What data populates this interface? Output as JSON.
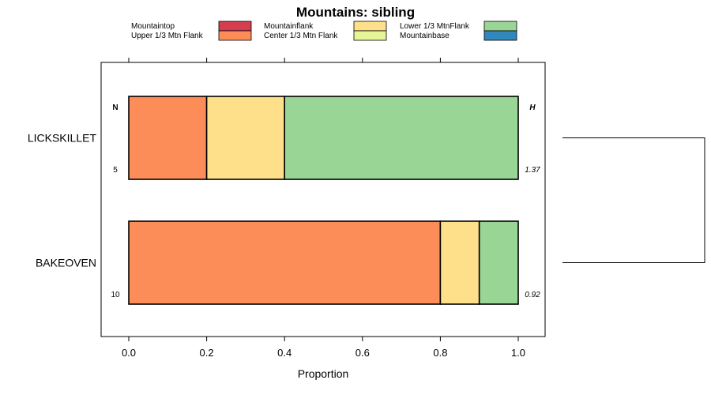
{
  "chart_data": {
    "type": "bar",
    "orientation": "horizontal",
    "stacked": true,
    "title": "Mountains: sibling",
    "xlabel": "Proportion",
    "ylabel": "",
    "xlim": [
      -0.07,
      1.07
    ],
    "xticks": [
      0.0,
      0.2,
      0.4,
      0.6,
      0.8,
      1.0
    ],
    "xtick_labels": [
      "0.0",
      "0.2",
      "0.4",
      "0.6",
      "0.8",
      "1.0"
    ],
    "legend_position": "top",
    "segments": [
      {
        "name": "Mountaintop",
        "color": "#d53e4f"
      },
      {
        "name": "Upper 1/3 Mtn Flank",
        "color": "#fc8d59"
      },
      {
        "name": "Mountainflank",
        "color": "#fee08b"
      },
      {
        "name": "Center 1/3 Mtn Flank",
        "color": "#e6f598"
      },
      {
        "name": "Lower 1/3 MtnFlank",
        "color": "#99d594"
      },
      {
        "name": "Mountainbase",
        "color": "#3288bd"
      }
    ],
    "bars": [
      {
        "label": "LICKSKILLET",
        "n": "5",
        "h": "1.37",
        "values": [
          0.0,
          0.2,
          0.2,
          0.0,
          0.6,
          0.0
        ]
      },
      {
        "label": "BAKEOVEN",
        "n": "10",
        "h": "0.92",
        "values": [
          0.0,
          0.8,
          0.1,
          0.0,
          0.1,
          0.0
        ]
      }
    ],
    "n_header": "N",
    "h_header": "H",
    "dendrogram": true
  }
}
